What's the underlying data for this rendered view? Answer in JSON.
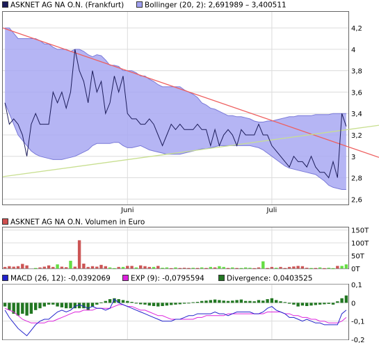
{
  "chart_data": [
    {
      "type": "line",
      "panel": "price",
      "legend": [
        {
          "name": "ASKNET AG NA O.N. (Frankfurt)",
          "color": "#1c1c5a"
        },
        {
          "name": "Bollinger (20, 2): 2,691989 – 3,400511",
          "color": "#a0a0f0"
        }
      ],
      "x_tick_labels": [
        "Juni",
        "Juli"
      ],
      "ylim": [
        2.55,
        4.35
      ],
      "y_ticks": [
        2.6,
        2.8,
        3.0,
        3.2,
        3.4,
        3.6,
        3.8,
        4.0,
        4.2
      ],
      "y_tick_labels": [
        "2,6",
        "2,8",
        "3",
        "3,2",
        "3,4",
        "3,6",
        "3,8",
        "4",
        "4,2"
      ],
      "grid": true,
      "price": [
        3.5,
        3.3,
        3.35,
        3.3,
        3.2,
        3.0,
        3.3,
        3.4,
        3.3,
        3.3,
        3.3,
        3.6,
        3.5,
        3.6,
        3.45,
        3.6,
        4.0,
        3.8,
        3.7,
        3.5,
        3.8,
        3.6,
        3.7,
        3.4,
        3.5,
        3.75,
        3.6,
        3.75,
        3.4,
        3.35,
        3.35,
        3.3,
        3.3,
        3.35,
        3.3,
        3.2,
        3.1,
        3.2,
        3.3,
        3.25,
        3.3,
        3.25,
        3.25,
        3.25,
        3.3,
        3.25,
        3.25,
        3.1,
        3.25,
        3.1,
        3.2,
        3.25,
        3.2,
        3.1,
        3.25,
        3.2,
        3.2,
        3.2,
        3.3,
        3.2,
        3.2,
        3.1,
        3.05,
        3.0,
        2.95,
        2.9,
        3.0,
        2.95,
        2.95,
        2.9,
        3.0,
        2.9,
        2.85,
        2.85,
        2.8,
        2.95,
        2.8,
        3.4,
        3.28
      ],
      "bollinger_upper": [
        4.2,
        4.2,
        4.15,
        4.1,
        4.1,
        4.1,
        4.1,
        4.1,
        4.08,
        4.05,
        4.05,
        4.02,
        4.0,
        4.0,
        4.0,
        3.98,
        4.0,
        4.0,
        3.98,
        3.95,
        3.93,
        3.95,
        3.94,
        3.9,
        3.85,
        3.85,
        3.84,
        3.8,
        3.8,
        3.8,
        3.78,
        3.75,
        3.75,
        3.72,
        3.7,
        3.67,
        3.65,
        3.65,
        3.65,
        3.65,
        3.65,
        3.62,
        3.6,
        3.58,
        3.55,
        3.5,
        3.48,
        3.45,
        3.44,
        3.42,
        3.4,
        3.38,
        3.38,
        3.37,
        3.37,
        3.36,
        3.35,
        3.33,
        3.32,
        3.32,
        3.33,
        3.33,
        3.34,
        3.35,
        3.36,
        3.37,
        3.37,
        3.38,
        3.38,
        3.38,
        3.38,
        3.39,
        3.39,
        3.39,
        3.39,
        3.4,
        3.4,
        3.4,
        3.4
      ],
      "bollinger_lower": [
        3.5,
        3.4,
        3.3,
        3.2,
        3.15,
        3.1,
        3.05,
        3.02,
        3.0,
        2.99,
        2.98,
        2.97,
        2.97,
        2.97,
        2.98,
        2.99,
        3.0,
        3.02,
        3.04,
        3.06,
        3.1,
        3.12,
        3.12,
        3.12,
        3.12,
        3.13,
        3.13,
        3.1,
        3.08,
        3.08,
        3.09,
        3.1,
        3.08,
        3.06,
        3.05,
        3.04,
        3.03,
        3.02,
        3.02,
        3.02,
        3.02,
        3.03,
        3.04,
        3.05,
        3.06,
        3.07,
        3.07,
        3.08,
        3.09,
        3.1,
        3.1,
        3.1,
        3.1,
        3.1,
        3.1,
        3.1,
        3.1,
        3.09,
        3.08,
        3.06,
        3.03,
        3.0,
        2.97,
        2.94,
        2.91,
        2.89,
        2.88,
        2.87,
        2.86,
        2.85,
        2.84,
        2.83,
        2.8,
        2.77,
        2.73,
        2.71,
        2.7,
        2.69,
        2.69
      ],
      "trend_lines": [
        {
          "color": "#ee6060",
          "start": 4.2,
          "end": 2.99
        },
        {
          "color": "#c8df90",
          "start": 2.81,
          "end": 3.29
        }
      ]
    },
    {
      "type": "bar",
      "panel": "volume",
      "legend": [
        {
          "name": "ASKNET AG NA O.N. Volumen in Euro",
          "color": "#d05050"
        }
      ],
      "y_ticks": [
        0,
        50,
        100,
        150
      ],
      "y_tick_labels": [
        "0T",
        "50T",
        "100T",
        "150T"
      ],
      "up_color": "#66dd44",
      "down_color": "#cc5555",
      "values": [
        6,
        9,
        7,
        9,
        18,
        12,
        0,
        2,
        4,
        7,
        12,
        6,
        16,
        7,
        5,
        30,
        7,
        110,
        19,
        6,
        9,
        7,
        14,
        9,
        4,
        1,
        6,
        6,
        10,
        10,
        4,
        12,
        9,
        6,
        6,
        10,
        3,
        4,
        1,
        4,
        2,
        3,
        2,
        3,
        2,
        4,
        2,
        6,
        4,
        9,
        6,
        2,
        4,
        2,
        2,
        4,
        3,
        1,
        4,
        28,
        2,
        6,
        3,
        6,
        2,
        6,
        8,
        10,
        9,
        3,
        2,
        2,
        4,
        1,
        3,
        1,
        10,
        10,
        16
      ],
      "directions": [
        0,
        0,
        0,
        0,
        0,
        0,
        0,
        1,
        0,
        0,
        0,
        0,
        1,
        0,
        0,
        1,
        0,
        0,
        0,
        0,
        0,
        0,
        0,
        0,
        1,
        1,
        0,
        1,
        0,
        0,
        1,
        0,
        0,
        0,
        1,
        0,
        1,
        1,
        0,
        1,
        0,
        0,
        0,
        1,
        0,
        1,
        0,
        1,
        0,
        1,
        1,
        0,
        1,
        0,
        1,
        1,
        1,
        0,
        0,
        1,
        0,
        0,
        1,
        0,
        0,
        0,
        0,
        0,
        0,
        0,
        1,
        0,
        1,
        0,
        1,
        1,
        0,
        1,
        1
      ]
    },
    {
      "type": "line",
      "panel": "macd",
      "legend": [
        {
          "name": "MACD (26, 12): -0,0392069",
          "color": "#2222cc"
        },
        {
          "name": "EXP (9): -0,0795594",
          "color": "#dd22dd"
        },
        {
          "name": "Divergence: 0,0403525",
          "color": "#227722"
        }
      ],
      "ylim": [
        -0.2,
        0.1
      ],
      "y_ticks": [
        0.1,
        0,
        -0.1,
        -0.2
      ],
      "y_tick_labels": [
        "0,1",
        "0",
        "-0,1",
        "-0,2"
      ],
      "macd": [
        -0.04,
        -0.08,
        -0.11,
        -0.14,
        -0.16,
        -0.18,
        -0.15,
        -0.12,
        -0.1,
        -0.09,
        -0.09,
        -0.07,
        -0.05,
        -0.04,
        -0.05,
        -0.04,
        -0.02,
        -0.01,
        -0.02,
        -0.03,
        -0.02,
        -0.03,
        -0.03,
        -0.04,
        -0.03,
        0.02,
        0.0,
        -0.01,
        -0.02,
        -0.03,
        -0.04,
        -0.05,
        -0.06,
        -0.07,
        -0.08,
        -0.09,
        -0.1,
        -0.1,
        -0.1,
        -0.09,
        -0.09,
        -0.08,
        -0.07,
        -0.07,
        -0.06,
        -0.06,
        -0.06,
        -0.06,
        -0.05,
        -0.06,
        -0.06,
        -0.07,
        -0.06,
        -0.05,
        -0.05,
        -0.05,
        -0.05,
        -0.06,
        -0.06,
        -0.05,
        -0.03,
        -0.02,
        -0.04,
        -0.05,
        -0.06,
        -0.08,
        -0.08,
        -0.09,
        -0.1,
        -0.09,
        -0.1,
        -0.11,
        -0.11,
        -0.12,
        -0.12,
        -0.12,
        -0.12,
        -0.06,
        -0.04
      ],
      "exp": [
        -0.03,
        -0.04,
        -0.05,
        -0.07,
        -0.09,
        -0.1,
        -0.11,
        -0.11,
        -0.11,
        -0.11,
        -0.1,
        -0.1,
        -0.09,
        -0.08,
        -0.07,
        -0.06,
        -0.05,
        -0.05,
        -0.04,
        -0.04,
        -0.04,
        -0.03,
        -0.03,
        -0.03,
        -0.03,
        -0.02,
        -0.01,
        -0.01,
        -0.02,
        -0.02,
        -0.03,
        -0.04,
        -0.04,
        -0.05,
        -0.06,
        -0.07,
        -0.07,
        -0.08,
        -0.09,
        -0.09,
        -0.09,
        -0.09,
        -0.09,
        -0.09,
        -0.08,
        -0.08,
        -0.07,
        -0.07,
        -0.07,
        -0.07,
        -0.07,
        -0.06,
        -0.06,
        -0.06,
        -0.06,
        -0.06,
        -0.06,
        -0.06,
        -0.06,
        -0.06,
        -0.05,
        -0.05,
        -0.05,
        -0.05,
        -0.06,
        -0.06,
        -0.07,
        -0.07,
        -0.08,
        -0.08,
        -0.09,
        -0.09,
        -0.1,
        -0.1,
        -0.11,
        -0.11,
        -0.11,
        -0.1,
        -0.08
      ],
      "divergence": [
        -0.02,
        -0.04,
        -0.06,
        -0.07,
        -0.06,
        -0.07,
        -0.06,
        -0.04,
        -0.03,
        -0.02,
        -0.01,
        -0.01,
        -0.02,
        -0.025,
        -0.03,
        -0.03,
        -0.03,
        -0.03,
        -0.03,
        -0.04,
        -0.02,
        -0.01,
        0.002,
        0.01,
        0.02,
        0.025,
        0.02,
        0.015,
        0.01,
        0.005,
        -0.004,
        -0.008,
        -0.01,
        -0.015,
        -0.018,
        -0.02,
        -0.018,
        -0.015,
        -0.012,
        -0.01,
        -0.008,
        -0.005,
        -0.002,
        0.003,
        0.005,
        0.01,
        0.012,
        0.015,
        0.018,
        0.015,
        0.012,
        0.01,
        0.012,
        0.015,
        0.018,
        0.01,
        0.01,
        0.008,
        0.015,
        0.012,
        0.02,
        0.025,
        0.015,
        0.008,
        0.004,
        -0.005,
        -0.01,
        -0.02,
        -0.015,
        -0.018,
        -0.015,
        -0.012,
        -0.01,
        -0.008,
        -0.006,
        -0.01,
        0.008,
        0.025,
        0.04
      ]
    }
  ]
}
